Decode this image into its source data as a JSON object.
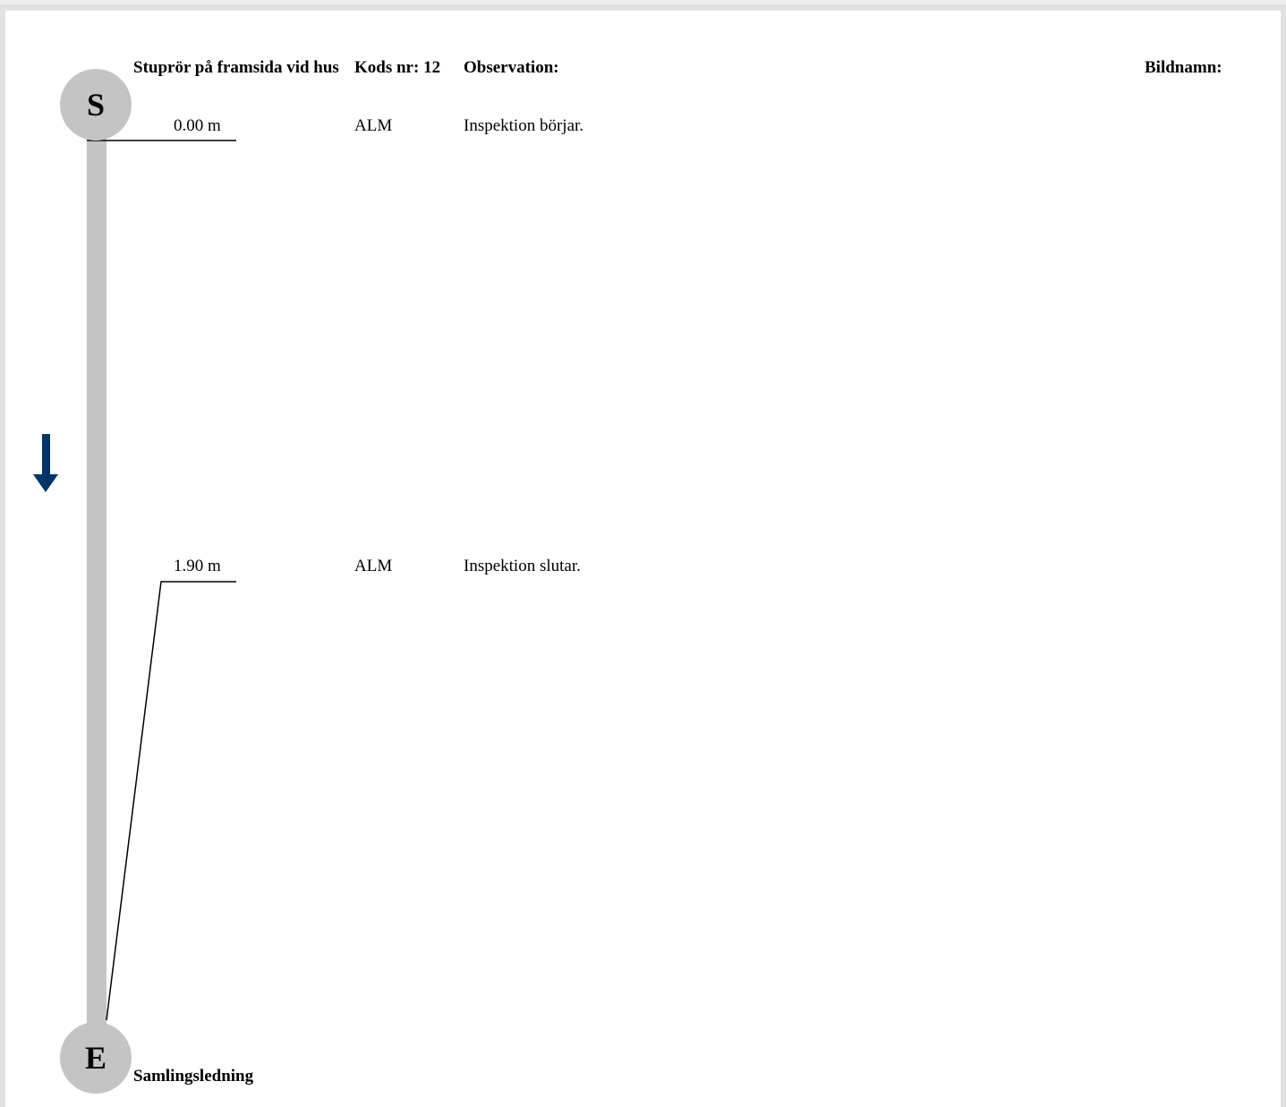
{
  "header": {
    "pipe_name": "Stuprör på framsida vid hus",
    "code_label": "Kods nr: 12",
    "observation_label": "Observation:",
    "image_name_label": "Bildnamn:"
  },
  "nodes": {
    "start": "S",
    "end": "E",
    "end_name": "Samlingsledning"
  },
  "observations": [
    {
      "distance": "0.00 m",
      "code": "ALM",
      "text": "Inspektion börjar."
    },
    {
      "distance": "1.90 m",
      "code": "ALM",
      "text": "Inspektion slutar."
    }
  ],
  "colors": {
    "pipe": "#c4c4c4",
    "flow_arrow": "#003366"
  },
  "icons": {
    "flow_direction": "arrow-down-icon"
  }
}
